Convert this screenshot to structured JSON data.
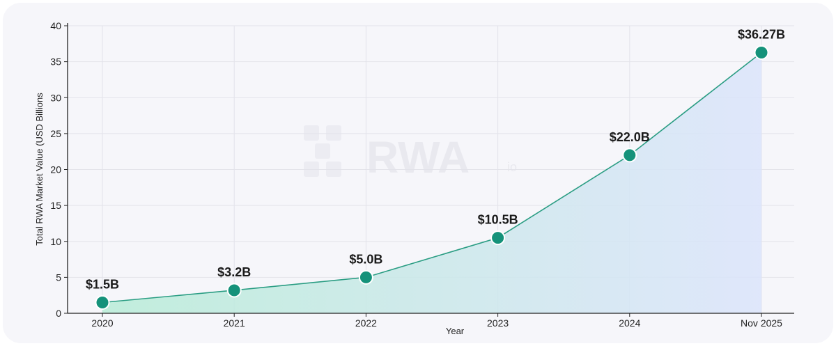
{
  "colors": {
    "line": "#2a9d83",
    "point": "#15927a",
    "point_stroke": "#ffffff",
    "fill_left": "#b8ecd7",
    "fill_right": "#dbe4fb",
    "grid": "#e3e3ea",
    "axis": "#222222"
  },
  "watermark": {
    "text": "RWA",
    "suffix": "io"
  },
  "chart_data": {
    "type": "line",
    "xlabel": "Year",
    "ylabel": "Total RWA Market Value (USD Billions",
    "categories": [
      "2020",
      "2021",
      "2022",
      "2023",
      "2024",
      "Nov 2025"
    ],
    "values": [
      1.5,
      3.2,
      5.0,
      10.5,
      22.0,
      36.27
    ],
    "data_labels": [
      "$1.5B",
      "$3.2B",
      "$5.0B",
      "$10.5B",
      "$22.0B",
      "$36.27B"
    ],
    "ylim": [
      0,
      40
    ],
    "yticks": [
      0,
      5,
      10,
      15,
      20,
      25,
      30,
      35,
      40
    ],
    "grid": true,
    "area_fill": true
  }
}
